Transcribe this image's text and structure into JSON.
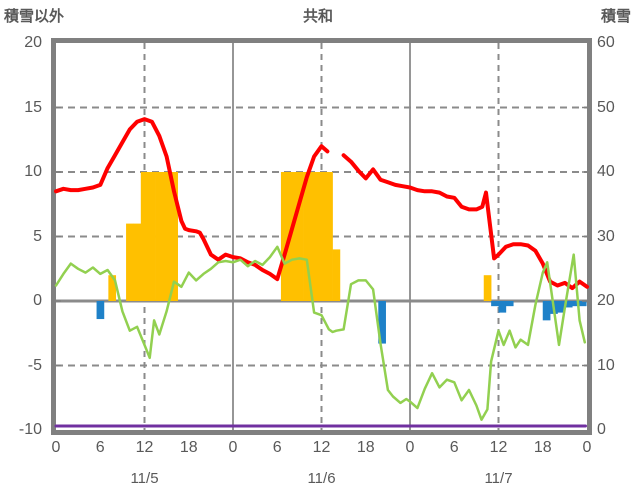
{
  "chart_data": {
    "type": "mixed-line-bar",
    "title": "共和",
    "background": "#ffffff",
    "grid_color": "#8b8b8b",
    "border_color": "#808080",
    "text_color": "#595959",
    "legend": "none",
    "left_axis": {
      "title": "積雪以外",
      "max": 20,
      "min": -10,
      "ticks": [
        20,
        15,
        10,
        5,
        0,
        -5,
        -10
      ],
      "tick_labels": [
        "20",
        "15",
        "10",
        "5",
        "0",
        "-5",
        "-10"
      ]
    },
    "right_axis": {
      "title": "積雪",
      "max": 60,
      "min": 0,
      "ticks": [
        60,
        50,
        40,
        30,
        20,
        10,
        0
      ],
      "tick_labels": [
        "60",
        "50",
        "40",
        "30",
        "20",
        "10",
        "0"
      ]
    },
    "x_axis": {
      "hours_total": 72,
      "hour_label_step": 6,
      "hour_labels": [
        "0",
        "6",
        "12",
        "18",
        "0",
        "6",
        "12",
        "18",
        "0",
        "6",
        "12",
        "18",
        "0"
      ],
      "date_labels": [
        "11/5",
        "11/6",
        "11/7"
      ],
      "date_label_hours": [
        12,
        36,
        60
      ],
      "solid_gridline_hours": [
        24,
        48
      ],
      "dashed_gridline_hours": [
        12,
        36,
        60
      ],
      "grid": true
    },
    "series": [
      {
        "name": "orange-bars",
        "type": "bar",
        "axis": "left",
        "color": "#FFC000",
        "bars": [
          [
            7.6,
            2
          ],
          [
            10,
            6
          ],
          [
            11,
            6
          ],
          [
            12,
            10
          ],
          [
            13,
            10
          ],
          [
            14,
            10
          ],
          [
            15,
            10
          ],
          [
            16,
            10
          ],
          [
            31,
            10
          ],
          [
            32,
            10
          ],
          [
            33,
            10
          ],
          [
            34,
            10
          ],
          [
            35,
            10
          ],
          [
            36,
            10
          ],
          [
            37,
            10
          ],
          [
            38,
            4
          ],
          [
            58.5,
            2
          ]
        ]
      },
      {
        "name": "blue-bars",
        "type": "bar",
        "axis": "left",
        "color": "#1E81C8",
        "bars": [
          [
            6,
            -1.4
          ],
          [
            44.2,
            -3.3
          ],
          [
            59.5,
            -0.4
          ],
          [
            60.5,
            -0.9
          ],
          [
            61.5,
            -0.4
          ],
          [
            66.5,
            -1.5
          ],
          [
            67.5,
            -1.0
          ],
          [
            68.5,
            -0.9
          ],
          [
            69.5,
            -0.5
          ],
          [
            70.5,
            -0.4
          ],
          [
            71.4,
            -0.4
          ]
        ]
      },
      {
        "name": "snow-line",
        "type": "line",
        "axis": "right",
        "color": "#7030A0",
        "width": 3,
        "points": [
          [
            0,
            0
          ],
          [
            71.8,
            0
          ]
        ]
      },
      {
        "name": "red-line",
        "type": "line",
        "axis": "left",
        "color": "#FF0000",
        "width": 4,
        "points": [
          [
            0,
            8.5
          ],
          [
            1,
            8.7
          ],
          [
            2,
            8.6
          ],
          [
            3,
            8.6
          ],
          [
            4,
            8.7
          ],
          [
            5,
            8.8
          ],
          [
            6,
            9.0
          ],
          [
            7,
            10.3
          ],
          [
            8,
            11.3
          ],
          [
            9,
            12.3
          ],
          [
            10,
            13.3
          ],
          [
            11,
            13.9
          ],
          [
            12,
            14.1
          ],
          [
            13,
            13.9
          ],
          [
            14,
            12.8
          ],
          [
            15,
            11.2
          ],
          [
            16,
            8.5
          ],
          [
            17,
            6.2
          ],
          [
            17.5,
            5.6
          ],
          [
            18,
            5.5
          ],
          [
            19,
            5.4
          ],
          [
            19.5,
            5.3
          ],
          [
            20,
            4.8
          ],
          [
            21,
            3.6
          ],
          [
            22,
            3.2
          ],
          [
            23,
            3.6
          ],
          [
            24,
            3.4
          ],
          [
            25,
            3.3
          ],
          [
            26,
            3.0
          ],
          [
            27,
            2.8
          ],
          [
            28,
            2.4
          ],
          [
            29,
            2.1
          ],
          [
            30,
            1.7
          ],
          [
            31,
            3.6
          ],
          [
            32,
            5.6
          ],
          [
            33,
            7.6
          ],
          [
            34,
            9.6
          ],
          [
            35,
            11.2
          ],
          [
            36,
            12.0
          ],
          [
            36.8,
            11.6
          ],
          [
            38,
            null
          ],
          [
            39,
            11.3
          ],
          [
            40,
            10.8
          ],
          [
            41,
            10.1
          ],
          [
            42,
            9.5
          ],
          [
            43,
            10.2
          ],
          [
            44,
            9.4
          ],
          [
            45,
            9.2
          ],
          [
            46,
            9.0
          ],
          [
            47,
            8.9
          ],
          [
            48,
            8.8
          ],
          [
            49,
            8.6
          ],
          [
            50,
            8.5
          ],
          [
            51,
            8.5
          ],
          [
            52,
            8.4
          ],
          [
            53,
            8.1
          ],
          [
            54,
            8.0
          ],
          [
            55,
            7.3
          ],
          [
            56,
            7.1
          ],
          [
            57,
            7.1
          ],
          [
            57.8,
            7.3
          ],
          [
            58.3,
            8.4
          ],
          [
            59.4,
            3.3
          ],
          [
            60,
            3.6
          ],
          [
            61,
            4.2
          ],
          [
            62,
            4.4
          ],
          [
            63,
            4.4
          ],
          [
            64,
            4.3
          ],
          [
            65,
            3.9
          ],
          [
            66,
            2.9
          ],
          [
            67,
            1.5
          ],
          [
            68,
            1.2
          ],
          [
            69,
            1.4
          ],
          [
            70,
            1.0
          ],
          [
            71,
            1.5
          ],
          [
            72,
            1.1
          ]
        ]
      },
      {
        "name": "green-line",
        "type": "line",
        "axis": "left",
        "color": "#92D050",
        "width": 2.5,
        "points": [
          [
            0,
            1.2
          ],
          [
            1,
            2.1
          ],
          [
            2,
            2.9
          ],
          [
            3,
            2.5
          ],
          [
            4,
            2.2
          ],
          [
            5,
            2.6
          ],
          [
            6,
            2.1
          ],
          [
            7,
            2.4
          ],
          [
            8,
            1.6
          ],
          [
            9,
            -0.8
          ],
          [
            10,
            -2.3
          ],
          [
            11,
            -2.0
          ],
          [
            12,
            -3.4
          ],
          [
            12.7,
            -4.4
          ],
          [
            13.3,
            -1.5
          ],
          [
            14,
            -2.6
          ],
          [
            15,
            -0.8
          ],
          [
            16,
            1.5
          ],
          [
            17,
            1.1
          ],
          [
            18,
            2.2
          ],
          [
            19,
            1.6
          ],
          [
            20,
            2.1
          ],
          [
            21,
            2.5
          ],
          [
            22,
            3.0
          ],
          [
            23,
            3.1
          ],
          [
            24,
            3.0
          ],
          [
            25,
            3.2
          ],
          [
            26,
            2.7
          ],
          [
            27,
            3.1
          ],
          [
            28,
            2.8
          ],
          [
            29,
            3.4
          ],
          [
            30,
            4.2
          ],
          [
            31,
            2.9
          ],
          [
            32,
            3.2
          ],
          [
            33,
            3.3
          ],
          [
            34,
            3.2
          ],
          [
            35,
            -0.9
          ],
          [
            36,
            -1.1
          ],
          [
            37,
            -2.2
          ],
          [
            37.5,
            -2.4
          ],
          [
            38,
            -2.3
          ],
          [
            39,
            -2.2
          ],
          [
            40,
            1.3
          ],
          [
            41,
            1.6
          ],
          [
            42,
            1.6
          ],
          [
            43,
            0.9
          ],
          [
            44,
            -3.3
          ],
          [
            45,
            -6.9
          ],
          [
            45.7,
            -7.4
          ],
          [
            46.7,
            -7.9
          ],
          [
            47.5,
            -7.6
          ],
          [
            48,
            -7.8
          ],
          [
            49,
            -8.3
          ],
          [
            50,
            -6.8
          ],
          [
            51,
            -5.6
          ],
          [
            52,
            -6.7
          ],
          [
            53,
            -6.1
          ],
          [
            54,
            -6.3
          ],
          [
            55,
            -7.7
          ],
          [
            56,
            -6.9
          ],
          [
            57,
            -8.1
          ],
          [
            57.7,
            -9.2
          ],
          [
            58.5,
            -8.4
          ],
          [
            59,
            -4.7
          ],
          [
            60,
            -2.3
          ],
          [
            60.7,
            -3.4
          ],
          [
            61.5,
            -2.3
          ],
          [
            62.3,
            -3.6
          ],
          [
            63,
            -3.0
          ],
          [
            64,
            -3.4
          ],
          [
            65,
            -0.3
          ],
          [
            66,
            2.2
          ],
          [
            66.6,
            3.0
          ],
          [
            68.2,
            -3.4
          ],
          [
            69,
            -0.5
          ],
          [
            70.2,
            3.6
          ],
          [
            71,
            -1.5
          ],
          [
            71.7,
            -3.2
          ]
        ]
      }
    ]
  }
}
